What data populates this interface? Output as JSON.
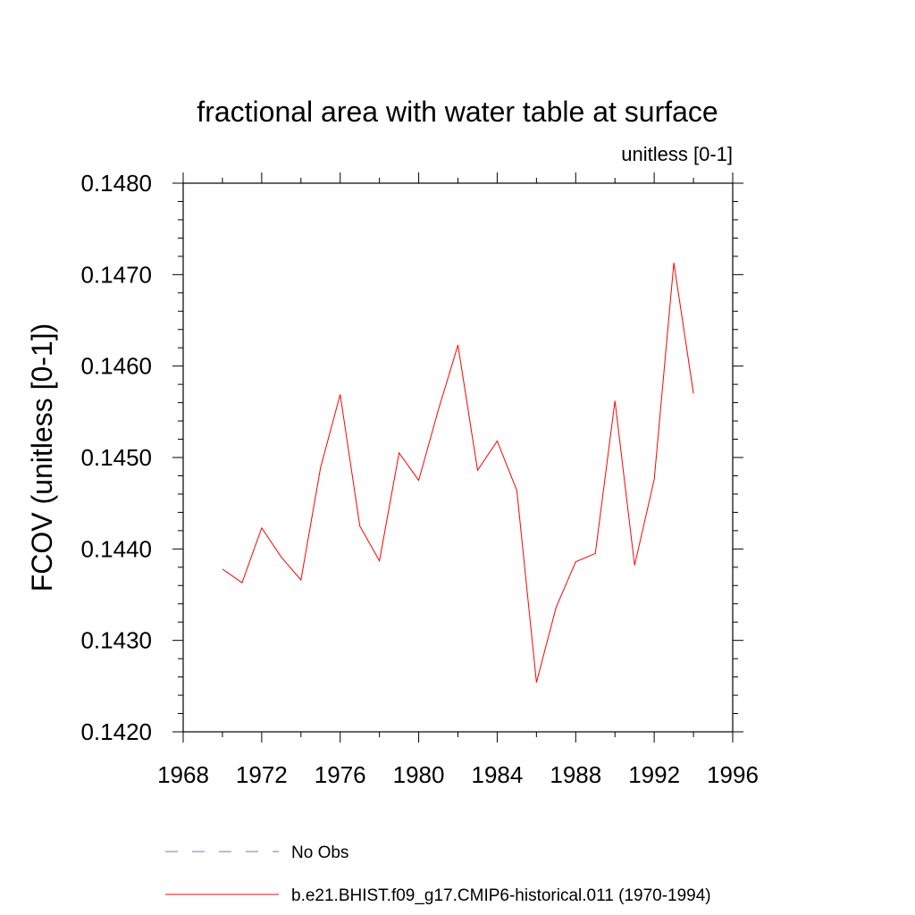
{
  "chart_data": {
    "type": "line",
    "title": "fractional area with water table at surface",
    "subtitle": "unitless [0-1]",
    "ylabel": "FCOV  (unitless [0-1])",
    "xlabel": "",
    "xlim": [
      1968,
      1996
    ],
    "ylim": [
      0.142,
      0.148
    ],
    "xticks": [
      "1968",
      "1972",
      "1976",
      "1980",
      "1984",
      "1988",
      "1992",
      "1996"
    ],
    "yticks": [
      "0.1420",
      "0.1430",
      "0.1440",
      "0.1450",
      "0.1460",
      "0.1470",
      "0.1480"
    ],
    "grid": false,
    "legend_position": "bottom",
    "series": [
      {
        "name": "b.e21.BHIST.f09_g17.CMIP6-historical.011 (1970-1994)",
        "color": "#ff0000",
        "style": "solid",
        "x": [
          1970,
          1971,
          1972,
          1973,
          1974,
          1975,
          1976,
          1977,
          1978,
          1979,
          1980,
          1981,
          1982,
          1983,
          1984,
          1985,
          1986,
          1987,
          1988,
          1989,
          1990,
          1991,
          1992,
          1993,
          1994
        ],
        "y": [
          0.14378,
          0.14363,
          0.14423,
          0.14391,
          0.14366,
          0.14489,
          0.14569,
          0.14425,
          0.14387,
          0.14505,
          0.14475,
          0.14552,
          0.14623,
          0.14486,
          0.14518,
          0.14464,
          0.14254,
          0.14336,
          0.14386,
          0.14395,
          0.14562,
          0.14382,
          0.14476,
          0.14713,
          0.1457
        ]
      }
    ],
    "legend": [
      {
        "label": "No Obs",
        "color": "#7f6fbf",
        "style": "dashed"
      },
      {
        "label": "b.e21.BHIST.f09_g17.CMIP6-historical.011 (1970-1994)",
        "color": "#ff0000",
        "style": "solid"
      }
    ]
  }
}
